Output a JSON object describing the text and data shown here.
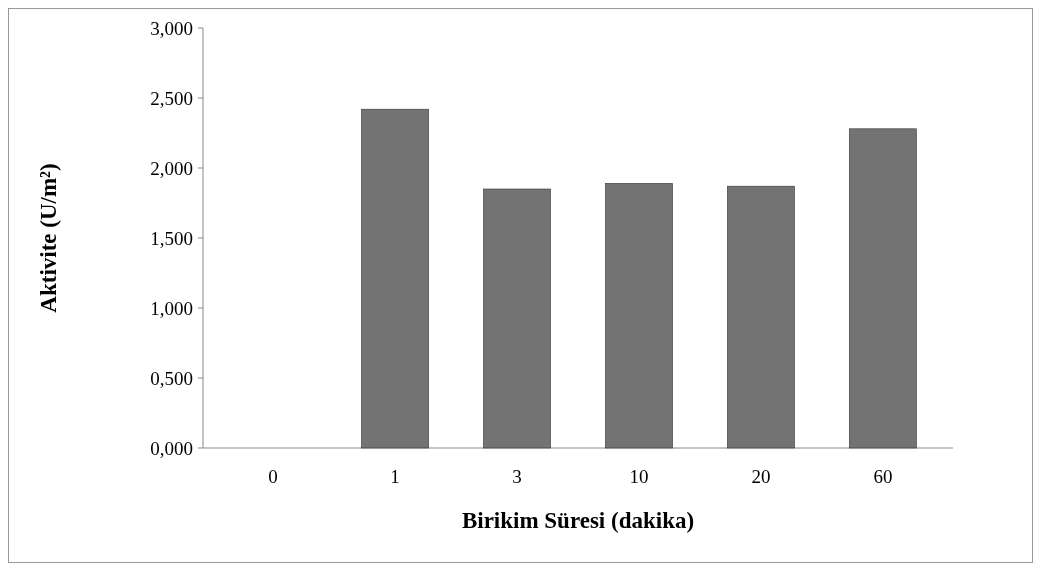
{
  "chart_data": {
    "type": "bar",
    "xlabel": "Birikim  Süresi (dakika)",
    "ylabel": "Aktivite (U/m²)",
    "categories": [
      "0",
      "1",
      "3",
      "10",
      "20",
      "60"
    ],
    "values": [
      0,
      2.42,
      1.85,
      1.89,
      1.87,
      2.28
    ],
    "color": "#737373",
    "ylim": [
      0,
      3
    ],
    "yticks": [
      {
        "value": 0,
        "label": "0,000"
      },
      {
        "value": 0.5,
        "label": "0,500"
      },
      {
        "value": 1,
        "label": "1,000"
      },
      {
        "value": 1.5,
        "label": "1,500"
      },
      {
        "value": 2,
        "label": "2,000"
      },
      {
        "value": 2.5,
        "label": "2,500"
      },
      {
        "value": 3,
        "label": "3,000"
      }
    ],
    "grid": false
  }
}
